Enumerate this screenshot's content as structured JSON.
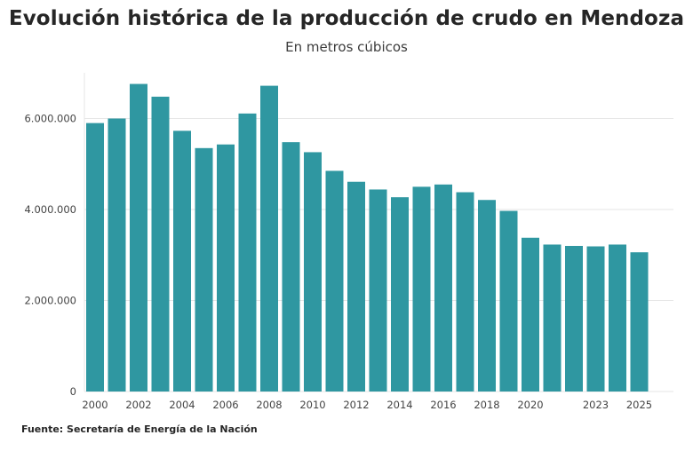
{
  "title": "Evolución histórica de la producción de crudo en Mendoza",
  "subtitle": "En metros cúbicos",
  "source": "Fuente: Secretaría de Energía de la Nación",
  "colors": {
    "bar": "#2f97a1",
    "grid": "#e6e6e6",
    "axis": "#444444"
  },
  "chart_data": {
    "type": "bar",
    "categories": [
      "2000",
      "2001",
      "2002",
      "2003",
      "2004",
      "2005",
      "2006",
      "2007",
      "2008",
      "2009",
      "2010",
      "2011",
      "2012",
      "2013",
      "2014",
      "2015",
      "2016",
      "2017",
      "2018",
      "2019",
      "2020",
      "2021",
      "2022",
      "2023",
      "2024",
      "2025"
    ],
    "values": [
      5900000,
      6000000,
      6760000,
      6480000,
      5730000,
      5350000,
      5430000,
      6110000,
      6720000,
      5480000,
      5260000,
      4850000,
      4610000,
      4440000,
      4270000,
      4500000,
      4550000,
      4380000,
      4210000,
      3970000,
      3380000,
      3230000,
      3200000,
      3190000,
      3230000,
      3060000
    ],
    "x_tick_labels": [
      "2000",
      "",
      "2002",
      "",
      "2004",
      "",
      "2006",
      "",
      "2008",
      "",
      "2010",
      "",
      "2012",
      "",
      "2014",
      "",
      "2016",
      "",
      "2018",
      "",
      "2020",
      "",
      "",
      "2023",
      "",
      "2025"
    ],
    "y_ticks": [
      {
        "value": 0,
        "label": "0"
      },
      {
        "value": 2000000,
        "label": "2.000.000"
      },
      {
        "value": 4000000,
        "label": "4.000.000"
      },
      {
        "value": 6000000,
        "label": "6.000.000"
      }
    ],
    "ylim": [
      0,
      7000000
    ],
    "grid": true
  }
}
